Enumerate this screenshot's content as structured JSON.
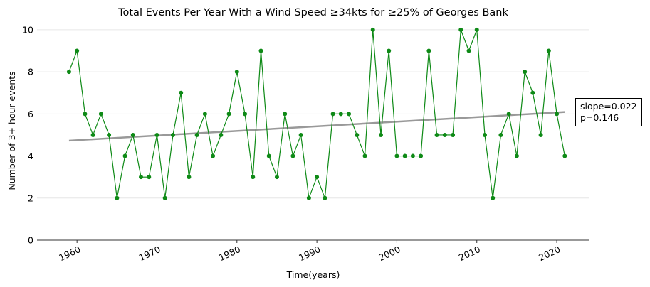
{
  "chart_data": {
    "type": "line",
    "title": "Total Events Per Year With a Wind Speed ≥34kts for ≥25% of Georges Bank",
    "xlabel": "Time(years)",
    "ylabel": "Number of 3+ hour events",
    "xlim": [
      1955,
      2024
    ],
    "ylim": [
      0,
      10.3
    ],
    "x_ticks": [
      1960,
      1970,
      1980,
      1990,
      2000,
      2010,
      2020
    ],
    "y_ticks": [
      0,
      2,
      4,
      6,
      8,
      10
    ],
    "grid": "horizontal",
    "series": [
      {
        "color": "#0e8a16",
        "x": [
          1959,
          1960,
          1961,
          1962,
          1963,
          1964,
          1965,
          1966,
          1967,
          1968,
          1969,
          1970,
          1971,
          1972,
          1973,
          1974,
          1975,
          1976,
          1977,
          1978,
          1979,
          1980,
          1981,
          1982,
          1983,
          1984,
          1985,
          1986,
          1987,
          1988,
          1989,
          1990,
          1991,
          1992,
          1993,
          1994,
          1995,
          1996,
          1997,
          1998,
          1999,
          2000,
          2001,
          2002,
          2003,
          2004,
          2005,
          2006,
          2007,
          2008,
          2009,
          2010,
          2011,
          2012,
          2013,
          2014,
          2015,
          2016,
          2017,
          2018,
          2019,
          2020,
          2021
        ],
        "values": [
          8,
          9,
          6,
          5,
          6,
          5,
          2,
          4,
          5,
          3,
          3,
          5,
          2,
          5,
          7,
          3,
          5,
          6,
          4,
          5,
          6,
          8,
          6,
          3,
          9,
          4,
          3,
          6,
          4,
          5,
          2,
          3,
          2,
          6,
          6,
          6,
          5,
          4,
          10,
          5,
          9,
          4,
          4,
          4,
          4,
          9,
          5,
          5,
          5,
          10,
          9,
          10,
          5,
          2,
          5,
          6,
          4,
          8,
          7,
          5,
          9,
          6,
          4
        ]
      }
    ],
    "trend": {
      "color": "#999999",
      "x": [
        1959,
        2021
      ],
      "values": [
        4.73,
        6.09
      ]
    },
    "annotation": {
      "slope": "slope=0.022",
      "p": "p=0.146"
    }
  }
}
